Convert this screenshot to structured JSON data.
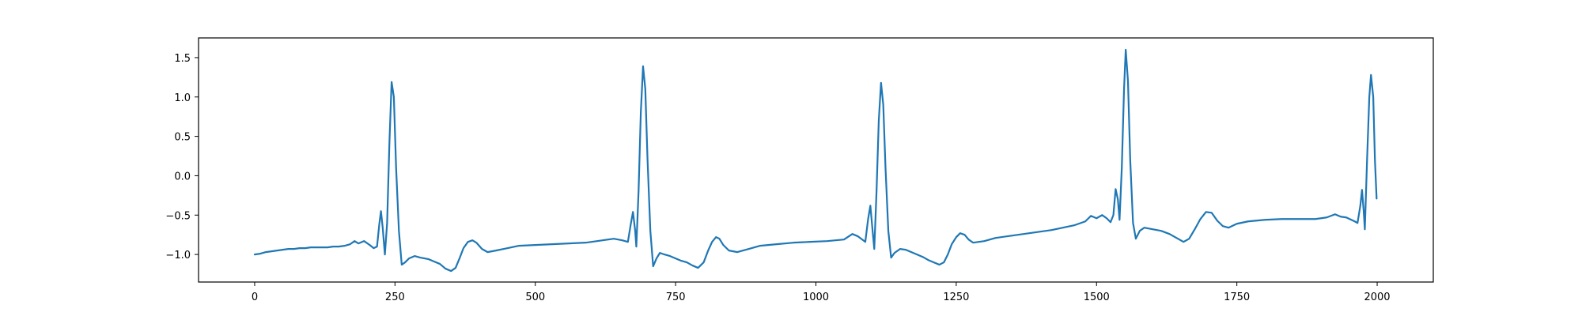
{
  "chart_data": {
    "type": "line",
    "title": "",
    "xlabel": "",
    "ylabel": "",
    "xlim": [
      -100,
      2100
    ],
    "ylim": [
      -1.35,
      1.75
    ],
    "grid": false,
    "x_ticks": [
      0,
      250,
      500,
      750,
      1000,
      1250,
      1500,
      1750,
      2000
    ],
    "x_tick_labels": [
      "0",
      "250",
      "500",
      "750",
      "1000",
      "1250",
      "1500",
      "1750",
      "2000"
    ],
    "y_ticks": [
      -1.0,
      -0.5,
      0.0,
      0.5,
      1.0,
      1.5
    ],
    "y_tick_labels": [
      "−1.0",
      "−0.5",
      "0.0",
      "0.5",
      "1.0",
      "1.5"
    ],
    "series": [
      {
        "color": "#1f77b4",
        "points": [
          [
            0,
            -1.0
          ],
          [
            10,
            -0.99
          ],
          [
            20,
            -0.97
          ],
          [
            30,
            -0.96
          ],
          [
            40,
            -0.95
          ],
          [
            50,
            -0.94
          ],
          [
            60,
            -0.93
          ],
          [
            70,
            -0.93
          ],
          [
            80,
            -0.92
          ],
          [
            90,
            -0.92
          ],
          [
            100,
            -0.91
          ],
          [
            110,
            -0.91
          ],
          [
            120,
            -0.91
          ],
          [
            130,
            -0.91
          ],
          [
            140,
            -0.9
          ],
          [
            150,
            -0.9
          ],
          [
            160,
            -0.89
          ],
          [
            170,
            -0.87
          ],
          [
            178,
            -0.83
          ],
          [
            185,
            -0.86
          ],
          [
            195,
            -0.83
          ],
          [
            205,
            -0.88
          ],
          [
            212,
            -0.92
          ],
          [
            218,
            -0.9
          ],
          [
            222,
            -0.62
          ],
          [
            225,
            -0.45
          ],
          [
            228,
            -0.65
          ],
          [
            232,
            -1.0
          ],
          [
            236,
            -0.6
          ],
          [
            240,
            0.4
          ],
          [
            244,
            1.19
          ],
          [
            248,
            1.0
          ],
          [
            252,
            0.1
          ],
          [
            257,
            -0.7
          ],
          [
            262,
            -1.13
          ],
          [
            268,
            -1.1
          ],
          [
            275,
            -1.05
          ],
          [
            285,
            -1.02
          ],
          [
            295,
            -1.04
          ],
          [
            310,
            -1.06
          ],
          [
            320,
            -1.09
          ],
          [
            330,
            -1.12
          ],
          [
            340,
            -1.18
          ],
          [
            350,
            -1.21
          ],
          [
            358,
            -1.17
          ],
          [
            365,
            -1.05
          ],
          [
            372,
            -0.92
          ],
          [
            380,
            -0.84
          ],
          [
            388,
            -0.82
          ],
          [
            395,
            -0.85
          ],
          [
            405,
            -0.93
          ],
          [
            415,
            -0.97
          ],
          [
            430,
            -0.95
          ],
          [
            450,
            -0.92
          ],
          [
            470,
            -0.89
          ],
          [
            500,
            -0.88
          ],
          [
            530,
            -0.87
          ],
          [
            560,
            -0.86
          ],
          [
            590,
            -0.85
          ],
          [
            620,
            -0.82
          ],
          [
            640,
            -0.8
          ],
          [
            655,
            -0.82
          ],
          [
            665,
            -0.84
          ],
          [
            670,
            -0.62
          ],
          [
            674,
            -0.46
          ],
          [
            678,
            -0.7
          ],
          [
            680,
            -0.9
          ],
          [
            684,
            -0.2
          ],
          [
            688,
            0.8
          ],
          [
            692,
            1.39
          ],
          [
            696,
            1.1
          ],
          [
            700,
            0.2
          ],
          [
            705,
            -0.7
          ],
          [
            710,
            -1.15
          ],
          [
            716,
            -1.05
          ],
          [
            722,
            -0.98
          ],
          [
            730,
            -1.0
          ],
          [
            740,
            -1.02
          ],
          [
            750,
            -1.05
          ],
          [
            760,
            -1.08
          ],
          [
            770,
            -1.1
          ],
          [
            780,
            -1.14
          ],
          [
            790,
            -1.17
          ],
          [
            800,
            -1.1
          ],
          [
            808,
            -0.95
          ],
          [
            815,
            -0.84
          ],
          [
            822,
            -0.78
          ],
          [
            828,
            -0.8
          ],
          [
            835,
            -0.88
          ],
          [
            845,
            -0.95
          ],
          [
            860,
            -0.97
          ],
          [
            880,
            -0.93
          ],
          [
            900,
            -0.89
          ],
          [
            930,
            -0.87
          ],
          [
            960,
            -0.85
          ],
          [
            990,
            -0.84
          ],
          [
            1020,
            -0.83
          ],
          [
            1050,
            -0.81
          ],
          [
            1065,
            -0.74
          ],
          [
            1075,
            -0.77
          ],
          [
            1088,
            -0.84
          ],
          [
            1093,
            -0.55
          ],
          [
            1097,
            -0.38
          ],
          [
            1101,
            -0.7
          ],
          [
            1104,
            -0.93
          ],
          [
            1108,
            -0.2
          ],
          [
            1112,
            0.7
          ],
          [
            1116,
            1.18
          ],
          [
            1120,
            0.9
          ],
          [
            1124,
            0.1
          ],
          [
            1129,
            -0.7
          ],
          [
            1134,
            -1.04
          ],
          [
            1140,
            -0.98
          ],
          [
            1150,
            -0.93
          ],
          [
            1160,
            -0.94
          ],
          [
            1170,
            -0.97
          ],
          [
            1180,
            -1.0
          ],
          [
            1190,
            -1.03
          ],
          [
            1200,
            -1.07
          ],
          [
            1210,
            -1.1
          ],
          [
            1220,
            -1.13
          ],
          [
            1228,
            -1.1
          ],
          [
            1235,
            -1.0
          ],
          [
            1242,
            -0.87
          ],
          [
            1250,
            -0.78
          ],
          [
            1257,
            -0.73
          ],
          [
            1265,
            -0.75
          ],
          [
            1272,
            -0.81
          ],
          [
            1280,
            -0.85
          ],
          [
            1300,
            -0.83
          ],
          [
            1320,
            -0.79
          ],
          [
            1340,
            -0.77
          ],
          [
            1360,
            -0.75
          ],
          [
            1380,
            -0.73
          ],
          [
            1400,
            -0.71
          ],
          [
            1420,
            -0.69
          ],
          [
            1440,
            -0.66
          ],
          [
            1460,
            -0.63
          ],
          [
            1480,
            -0.58
          ],
          [
            1490,
            -0.51
          ],
          [
            1500,
            -0.54
          ],
          [
            1510,
            -0.5
          ],
          [
            1518,
            -0.54
          ],
          [
            1525,
            -0.59
          ],
          [
            1530,
            -0.5
          ],
          [
            1534,
            -0.17
          ],
          [
            1538,
            -0.3
          ],
          [
            1541,
            -0.56
          ],
          [
            1545,
            0.1
          ],
          [
            1549,
            1.1
          ],
          [
            1552,
            1.6
          ],
          [
            1556,
            1.2
          ],
          [
            1560,
            0.2
          ],
          [
            1565,
            -0.6
          ],
          [
            1570,
            -0.8
          ],
          [
            1577,
            -0.7
          ],
          [
            1585,
            -0.66
          ],
          [
            1600,
            -0.68
          ],
          [
            1615,
            -0.7
          ],
          [
            1630,
            -0.74
          ],
          [
            1645,
            -0.8
          ],
          [
            1655,
            -0.84
          ],
          [
            1665,
            -0.8
          ],
          [
            1675,
            -0.68
          ],
          [
            1685,
            -0.55
          ],
          [
            1695,
            -0.46
          ],
          [
            1705,
            -0.47
          ],
          [
            1715,
            -0.57
          ],
          [
            1725,
            -0.64
          ],
          [
            1735,
            -0.66
          ],
          [
            1750,
            -0.61
          ],
          [
            1770,
            -0.58
          ],
          [
            1800,
            -0.56
          ],
          [
            1830,
            -0.55
          ],
          [
            1860,
            -0.55
          ],
          [
            1890,
            -0.55
          ],
          [
            1910,
            -0.53
          ],
          [
            1925,
            -0.49
          ],
          [
            1935,
            -0.52
          ],
          [
            1945,
            -0.53
          ],
          [
            1960,
            -0.58
          ],
          [
            1965,
            -0.6
          ],
          [
            1970,
            -0.38
          ],
          [
            1973,
            -0.18
          ],
          [
            1976,
            -0.45
          ],
          [
            1978,
            -0.68
          ],
          [
            1982,
            0.2
          ],
          [
            1986,
            1.0
          ],
          [
            1989,
            1.28
          ],
          [
            1993,
            1.0
          ],
          [
            1996,
            0.2
          ],
          [
            1999,
            -0.29
          ]
        ]
      }
    ]
  }
}
